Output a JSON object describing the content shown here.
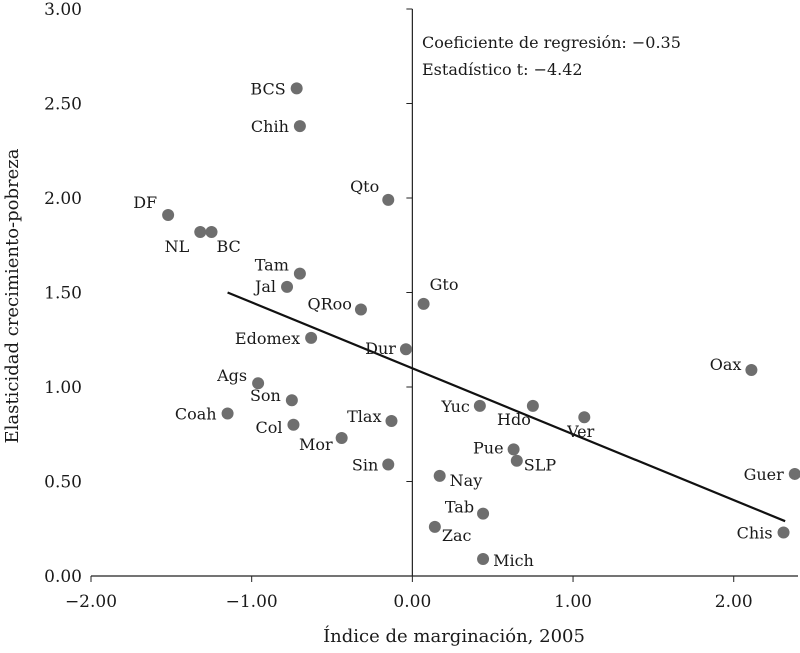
{
  "chart_data": {
    "type": "scatter",
    "xlabel": "Índice de marginación, 2005",
    "ylabel": "Elasticidad crecimiento-pobreza",
    "xlim": [
      -2.0,
      2.4
    ],
    "ylim": [
      0.0,
      3.0
    ],
    "x_ticks": [
      {
        "value": -2.0,
        "label": "−2.00"
      },
      {
        "value": -1.0,
        "label": "−1.00"
      },
      {
        "value": 0.0,
        "label": "0.00"
      },
      {
        "value": 1.0,
        "label": "1.00"
      },
      {
        "value": 2.0,
        "label": "2.00"
      }
    ],
    "y_ticks": [
      {
        "value": 0.0,
        "label": "0.00"
      },
      {
        "value": 0.5,
        "label": "0.50"
      },
      {
        "value": 1.0,
        "label": "1.00"
      },
      {
        "value": 1.5,
        "label": "1.50"
      },
      {
        "value": 2.0,
        "label": "2.00"
      },
      {
        "value": 2.5,
        "label": "2.50"
      },
      {
        "value": 3.0,
        "label": "3.00"
      }
    ],
    "annotations": [
      "Coeficiente de regresión: −0.35",
      "Estadístico t: −4.42"
    ],
    "trend_line": {
      "x": [
        -1.15,
        2.32
      ],
      "y": [
        1.5,
        0.29
      ]
    },
    "points": [
      {
        "label": "BCS",
        "x": -0.72,
        "y": 2.58
      },
      {
        "label": "Chih",
        "x": -0.7,
        "y": 2.38
      },
      {
        "label": "DF",
        "x": -1.52,
        "y": 1.91
      },
      {
        "label": "NL",
        "x": -1.32,
        "y": 1.82
      },
      {
        "label": "BC",
        "x": -1.25,
        "y": 1.82
      },
      {
        "label": "Qto",
        "x": -0.15,
        "y": 1.99
      },
      {
        "label": "Tam",
        "x": -0.7,
        "y": 1.6
      },
      {
        "label": "Jal",
        "x": -0.78,
        "y": 1.53
      },
      {
        "label": "QRoo",
        "x": -0.32,
        "y": 1.41
      },
      {
        "label": "Gto",
        "x": 0.07,
        "y": 1.44
      },
      {
        "label": "Edomex",
        "x": -0.63,
        "y": 1.26
      },
      {
        "label": "Dur",
        "x": -0.04,
        "y": 1.2
      },
      {
        "label": "Oax",
        "x": 2.11,
        "y": 1.09
      },
      {
        "label": "Ags",
        "x": -0.96,
        "y": 1.02
      },
      {
        "label": "Son",
        "x": -0.75,
        "y": 0.93
      },
      {
        "label": "Coah",
        "x": -1.15,
        "y": 0.86
      },
      {
        "label": "Col",
        "x": -0.74,
        "y": 0.8
      },
      {
        "label": "Tlax",
        "x": -0.13,
        "y": 0.82
      },
      {
        "label": "Mor",
        "x": -0.44,
        "y": 0.73
      },
      {
        "label": "Sin",
        "x": -0.15,
        "y": 0.59
      },
      {
        "label": "Yuc",
        "x": 0.42,
        "y": 0.9
      },
      {
        "label": "Hdo",
        "x": 0.75,
        "y": 0.9
      },
      {
        "label": "Ver",
        "x": 1.07,
        "y": 0.84
      },
      {
        "label": "Pue",
        "x": 0.63,
        "y": 0.67
      },
      {
        "label": "SLP",
        "x": 0.65,
        "y": 0.61
      },
      {
        "label": "Nay",
        "x": 0.17,
        "y": 0.53
      },
      {
        "label": "Tab",
        "x": 0.44,
        "y": 0.33
      },
      {
        "label": "Zac",
        "x": 0.14,
        "y": 0.26
      },
      {
        "label": "Mich",
        "x": 0.44,
        "y": 0.09
      },
      {
        "label": "Guer",
        "x": 2.38,
        "y": 0.54
      },
      {
        "label": "Chis",
        "x": 2.31,
        "y": 0.23
      }
    ]
  }
}
